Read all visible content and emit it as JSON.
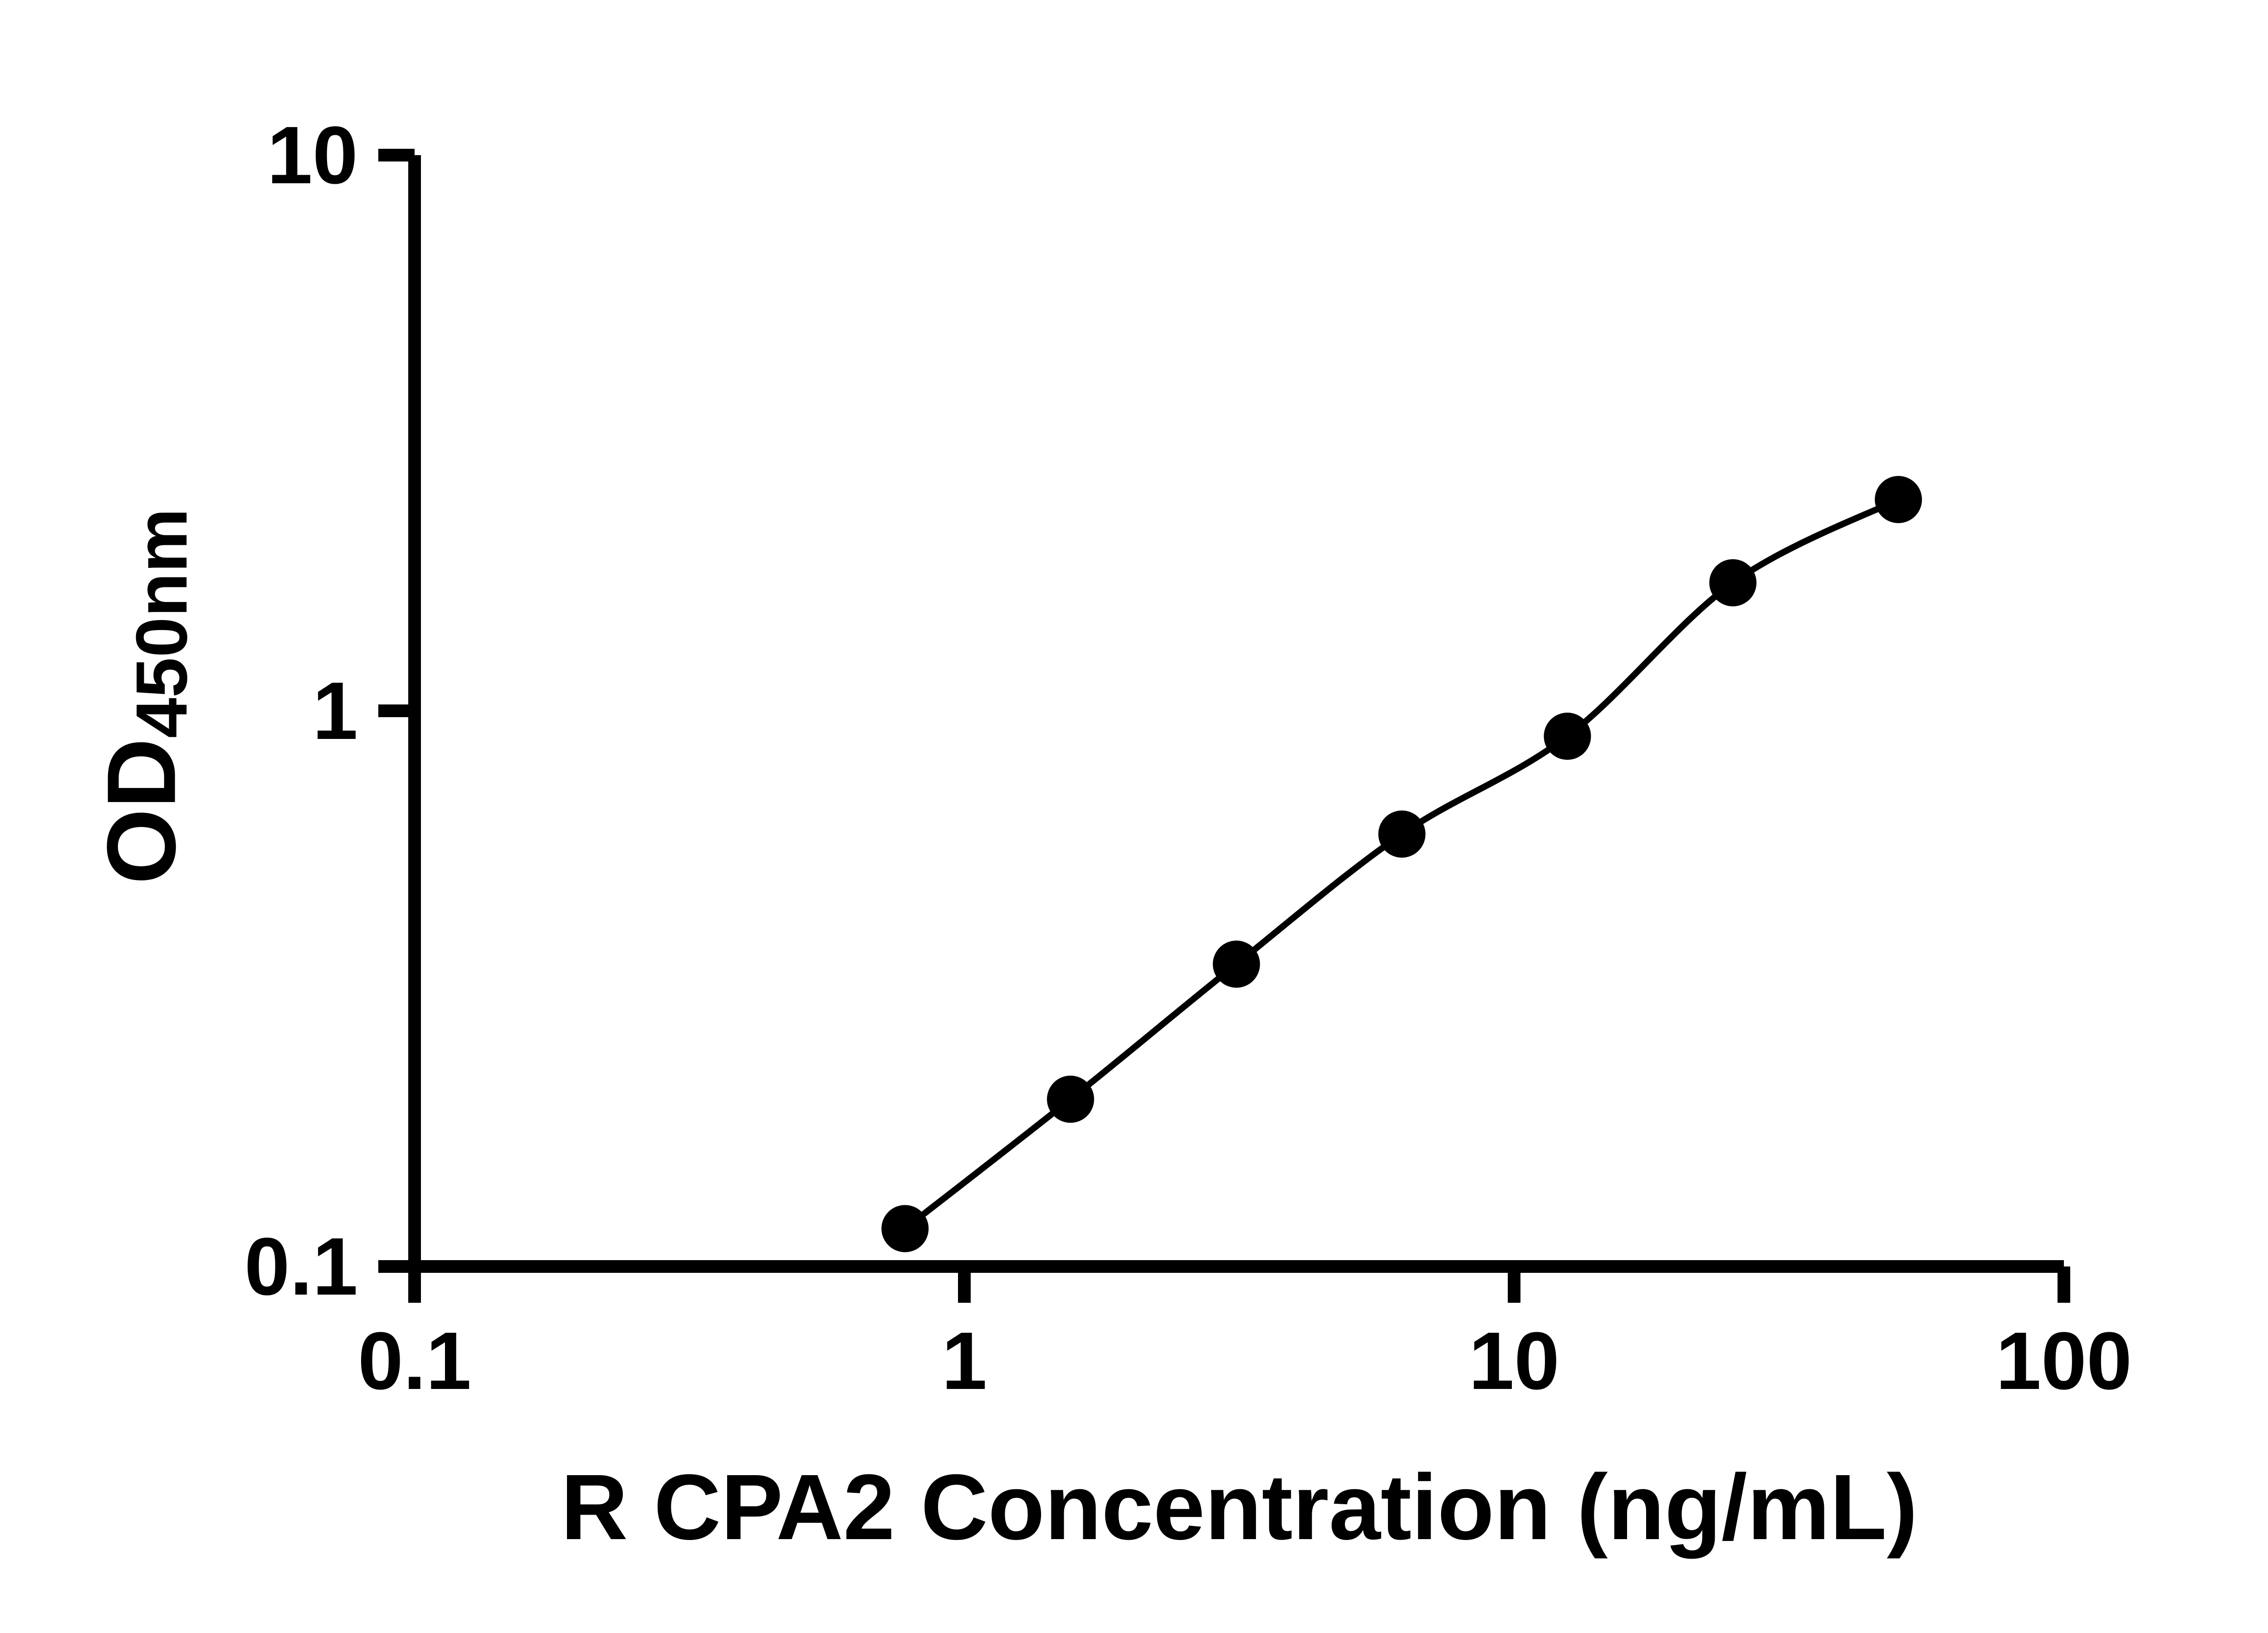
{
  "chart_data": {
    "type": "scatter",
    "x": [
      0.78,
      1.56,
      3.125,
      6.25,
      12.5,
      25,
      50
    ],
    "y": [
      0.117,
      0.2,
      0.35,
      0.6,
      0.9,
      1.7,
      2.4
    ],
    "title": "",
    "xlabel": "R CPA2 Concentration (ng/mL)",
    "ylabel_main": "OD",
    "ylabel_sub": "450nm",
    "xscale": "log",
    "yscale": "log",
    "xlim": [
      0.1,
      100
    ],
    "ylim": [
      0.1,
      10
    ],
    "x_ticks": [
      "0.1",
      "1",
      "10",
      "100"
    ],
    "y_ticks": [
      "0.1",
      "1",
      "10"
    ],
    "grid": false,
    "legend": false,
    "marker": "circle",
    "marker_color": "#000000",
    "line_color": "#000000",
    "axis_color": "#000000",
    "background_color": "#ffffff"
  }
}
